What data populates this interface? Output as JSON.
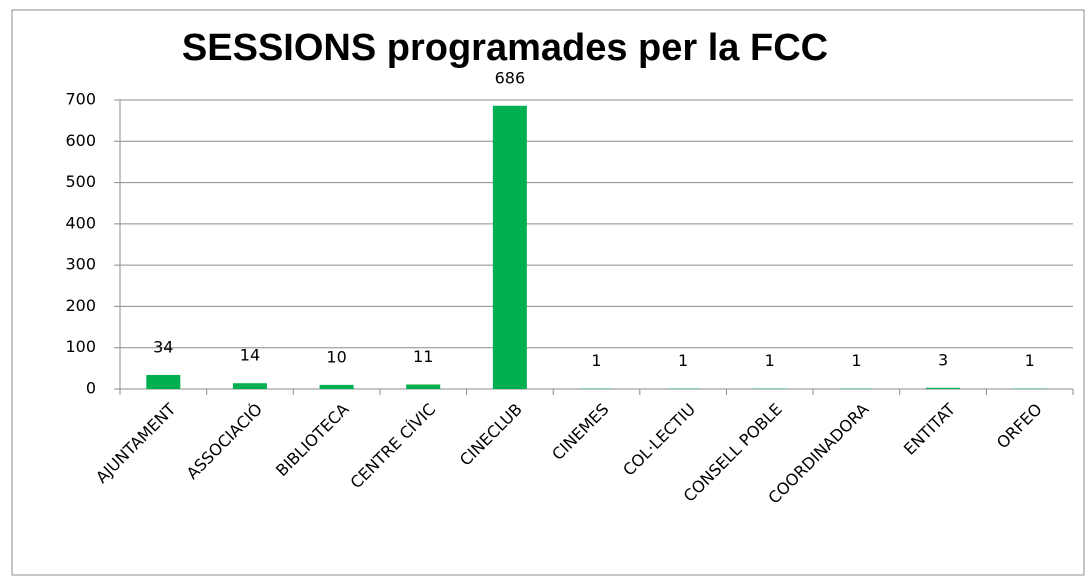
{
  "chart_data": {
    "type": "bar",
    "title": "SESSIONS  programades per la FCC",
    "categories": [
      "AJUNTAMENT",
      "ASSOCIACIÓ",
      "BIBLIOTECA",
      "CENTRE CÍVIC",
      "CINECLUB",
      "CINEMES",
      "COL·LECTIU",
      "CONSELL POBLE",
      "COORDINADORA",
      "ENTITAT",
      "ORFEO"
    ],
    "values": [
      34,
      14,
      10,
      11,
      686,
      1,
      1,
      1,
      1,
      3,
      1
    ],
    "color": "#00b050",
    "ylim": [
      0,
      700
    ],
    "yticks": [
      0,
      100,
      200,
      300,
      400,
      500,
      600,
      700
    ],
    "grid": true
  }
}
